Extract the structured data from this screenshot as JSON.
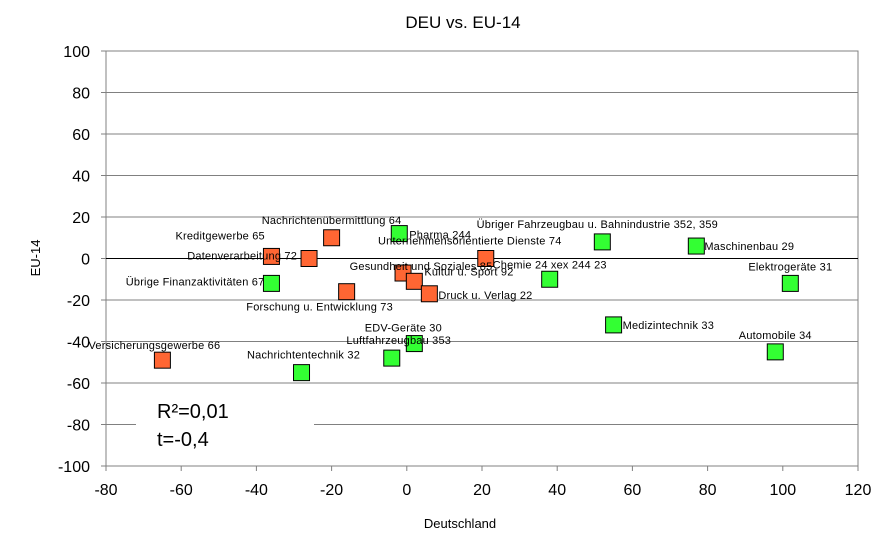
{
  "chart_data": {
    "type": "scatter",
    "title": "DEU vs. EU-14",
    "xlabel": "Deutschland",
    "ylabel": "EU-14",
    "xlim": [
      -80,
      120
    ],
    "ylim": [
      -100,
      100
    ],
    "x_ticks": [
      "-80",
      "-60",
      "-40",
      "-20",
      "0",
      "20",
      "40",
      "60",
      "80",
      "100",
      "120"
    ],
    "y_ticks": [
      "100",
      "80",
      "60",
      "40",
      "20",
      "0",
      "-20",
      "-40",
      "-60",
      "-80",
      "-100"
    ],
    "grid": "horizontal",
    "colors": {
      "green": "#33ff33",
      "orange": "#ff6633",
      "marker_edge": "#000000"
    },
    "annotations": [
      "R²=0,01",
      "t=-0,4"
    ],
    "points": [
      {
        "label": "Nachrichtenübermittlung 64",
        "x": -20,
        "y": 10,
        "color": "orange"
      },
      {
        "label": "Pharma 244",
        "x": -2,
        "y": 12,
        "color": "green"
      },
      {
        "label": "Kreditgewerbe 65",
        "x": -36,
        "y": 1,
        "color": "orange"
      },
      {
        "label": "Datenverarbeitung 72",
        "x": -26,
        "y": 0,
        "color": "orange"
      },
      {
        "label": "Übrige Finanzaktivitäten 67",
        "x": -36,
        "y": -12,
        "color": "green"
      },
      {
        "label": "Forschung u. Entwicklung 73",
        "x": -16,
        "y": -16,
        "color": "orange"
      },
      {
        "label": "Gesundheit und Soziales 85",
        "x": -1,
        "y": -7,
        "color": "orange"
      },
      {
        "label": "Kultur u. Sport 92",
        "x": 2,
        "y": -11,
        "color": "orange"
      },
      {
        "label": "Druck u. Verlag 22",
        "x": 6,
        "y": -17,
        "color": "orange"
      },
      {
        "label": "Unternehmensorientierte Dienste 74",
        "x": 21,
        "y": 0,
        "color": "orange"
      },
      {
        "label": "Übriger Fahrzeugbau u. Bahnindustrie 352, 359",
        "x": 52,
        "y": 8,
        "color": "green"
      },
      {
        "label": "Chemie 24 xex 244 23",
        "x": 38,
        "y": -10,
        "color": "green"
      },
      {
        "label": "Maschinenbau 29",
        "x": 77,
        "y": 6,
        "color": "green"
      },
      {
        "label": "Elektrogeräte 31",
        "x": 102,
        "y": -12,
        "color": "green"
      },
      {
        "label": "EDV-Geräte 30",
        "x": 2,
        "y": -41,
        "color": "green"
      },
      {
        "label": "Luftfahrzeugbau 353",
        "x": -4,
        "y": -48,
        "color": "green"
      },
      {
        "label": "Nachrichtentechnik 32",
        "x": -28,
        "y": -55,
        "color": "green"
      },
      {
        "label": "Versicherungsgewerbe 66",
        "x": -65,
        "y": -49,
        "color": "orange"
      },
      {
        "label": "Medizintechnik 33",
        "x": 55,
        "y": -32,
        "color": "green"
      },
      {
        "label": "Automobile 34",
        "x": 98,
        "y": -45,
        "color": "green"
      }
    ]
  }
}
